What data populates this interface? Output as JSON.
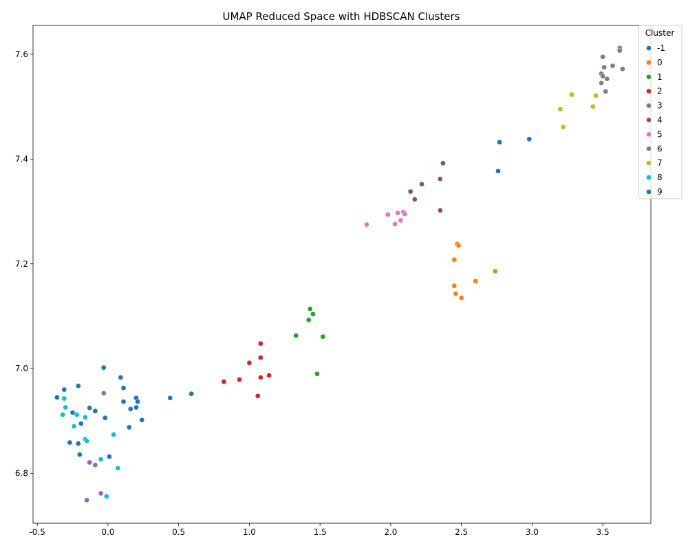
{
  "chart_data": {
    "type": "scatter",
    "title": "UMAP Reduced Space with HDBSCAN Clusters",
    "xlabel": "",
    "ylabel": "",
    "xlim": [
      -0.53,
      3.84
    ],
    "ylim": [
      6.705,
      7.655
    ],
    "xticks": [
      -0.5,
      0.0,
      0.5,
      1.0,
      1.5,
      2.0,
      2.5,
      3.0,
      3.5
    ],
    "xtick_labels": [
      "-0.5",
      "0.0",
      "0.5",
      "1.0",
      "1.5",
      "2.0",
      "2.5",
      "3.0",
      "3.5"
    ],
    "yticks": [
      6.8,
      7.0,
      7.2,
      7.4,
      7.6
    ],
    "ytick_labels": [
      "6.8",
      "7.0",
      "7.2",
      "7.4",
      "7.6"
    ],
    "grid": false,
    "legend": {
      "title": "Cluster",
      "placement": "outside upper right"
    },
    "series": [
      {
        "name": "-1",
        "color": "#1f77b4",
        "points": [
          [
            -0.36,
            6.945
          ],
          [
            -0.31,
            6.96
          ],
          [
            -0.21,
            6.967
          ],
          [
            -0.03,
            7.002
          ],
          [
            0.09,
            6.983
          ],
          [
            0.11,
            6.963
          ],
          [
            0.11,
            6.937
          ],
          [
            0.2,
            6.944
          ],
          [
            0.21,
            6.937
          ],
          [
            0.2,
            6.926
          ],
          [
            0.16,
            6.923
          ],
          [
            0.24,
            6.902
          ],
          [
            0.15,
            6.888
          ],
          [
            -0.13,
            6.925
          ],
          [
            -0.09,
            6.919
          ],
          [
            -0.25,
            6.916
          ],
          [
            -0.02,
            6.906
          ],
          [
            -0.19,
            6.895
          ],
          [
            -0.27,
            6.859
          ],
          [
            -0.21,
            6.857
          ],
          [
            -0.2,
            6.836
          ],
          [
            0.01,
            6.832
          ],
          [
            0.44,
            6.944
          ],
          [
            0.59,
            6.952
          ]
        ]
      },
      {
        "name": "0",
        "color": "#ff7f0e",
        "points": [
          [
            2.47,
            7.238
          ],
          [
            2.48,
            7.235
          ],
          [
            2.45,
            7.208
          ],
          [
            2.74,
            7.186
          ],
          [
            2.6,
            7.167
          ],
          [
            2.45,
            7.158
          ],
          [
            2.46,
            7.143
          ],
          [
            2.5,
            7.135
          ]
        ]
      },
      {
        "name": "1",
        "color": "#2ca02c",
        "points": [
          [
            1.43,
            7.114
          ],
          [
            1.45,
            7.104
          ],
          [
            1.42,
            7.093
          ],
          [
            1.33,
            7.063
          ],
          [
            1.52,
            7.061
          ],
          [
            1.48,
            6.99
          ]
        ]
      },
      {
        "name": "2",
        "color": "#d62728",
        "points": [
          [
            1.08,
            7.048
          ],
          [
            1.08,
            7.021
          ],
          [
            1.0,
            7.011
          ],
          [
            1.14,
            6.987
          ],
          [
            1.08,
            6.983
          ],
          [
            0.93,
            6.979
          ],
          [
            0.82,
            6.975
          ],
          [
            1.06,
            6.948
          ]
        ]
      },
      {
        "name": "3",
        "color": "#9467bd",
        "points": [
          [
            -0.03,
            6.953
          ],
          [
            -0.13,
            6.821
          ],
          [
            -0.09,
            6.816
          ],
          [
            -0.05,
            6.762
          ],
          [
            -0.15,
            6.749
          ]
        ]
      },
      {
        "name": "4",
        "color": "#8c564b",
        "points": [
          [
            2.37,
            7.392
          ],
          [
            2.35,
            7.362
          ],
          [
            2.22,
            7.352
          ],
          [
            2.14,
            7.338
          ],
          [
            2.17,
            7.323
          ],
          [
            2.35,
            7.302
          ]
        ]
      },
      {
        "name": "5",
        "color": "#e377c2",
        "points": [
          [
            2.09,
            7.299
          ],
          [
            2.05,
            7.297
          ],
          [
            2.1,
            7.295
          ],
          [
            1.98,
            7.294
          ],
          [
            2.07,
            7.283
          ],
          [
            2.03,
            7.276
          ],
          [
            1.83,
            7.275
          ]
        ]
      },
      {
        "name": "6",
        "color": "#7f7f7f",
        "points": [
          [
            3.62,
            7.612
          ],
          [
            3.62,
            7.607
          ],
          [
            3.5,
            7.595
          ],
          [
            3.57,
            7.578
          ],
          [
            3.51,
            7.575
          ],
          [
            3.64,
            7.572
          ],
          [
            3.49,
            7.563
          ],
          [
            3.5,
            7.558
          ],
          [
            3.53,
            7.553
          ],
          [
            3.49,
            7.545
          ],
          [
            3.52,
            7.529
          ]
        ]
      },
      {
        "name": "7",
        "color": "#bcbd22",
        "points": [
          [
            3.28,
            7.523
          ],
          [
            3.45,
            7.521
          ],
          [
            3.43,
            7.5
          ],
          [
            3.2,
            7.495
          ],
          [
            3.22,
            7.461
          ]
        ]
      },
      {
        "name": "8",
        "color": "#17becf",
        "points": [
          [
            -0.31,
            6.943
          ],
          [
            -0.3,
            6.926
          ],
          [
            -0.32,
            6.912
          ],
          [
            -0.22,
            6.912
          ],
          [
            -0.16,
            6.907
          ],
          [
            -0.24,
            6.89
          ],
          [
            0.04,
            6.874
          ],
          [
            -0.16,
            6.865
          ],
          [
            -0.15,
            6.862
          ],
          [
            -0.05,
            6.827
          ],
          [
            0.07,
            6.81
          ],
          [
            -0.01,
            6.756
          ]
        ]
      },
      {
        "name": "9",
        "color": "#1f77b4",
        "points": [
          [
            2.77,
            7.432
          ],
          [
            2.98,
            7.438
          ],
          [
            2.76,
            7.377
          ]
        ]
      }
    ]
  }
}
